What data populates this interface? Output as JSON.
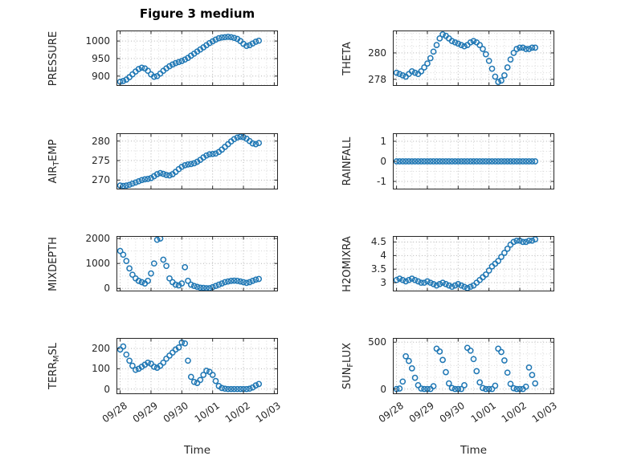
{
  "figure": {
    "title": "Figure 3 medium",
    "xlabel": "Time",
    "marker_color": "#1f77b4",
    "grid_major_color": "#b3b3b3",
    "grid_minor_color": "#d8d8d8",
    "axis_color": "#262626"
  },
  "chart_data": {
    "type": "scatter",
    "marker": "open-circle",
    "grid": "dotted major+minor",
    "x_unit": "days since 09/28",
    "xtick_labels": [
      "09/28",
      "09/29",
      "09/30",
      "10/01",
      "10/02",
      "10/03"
    ],
    "xticks": [
      0,
      1,
      2,
      3,
      4,
      5
    ],
    "xlim": [
      -0.12,
      5.12
    ],
    "x_minor": 0.25,
    "x": [
      0,
      0.1,
      0.2,
      0.3,
      0.4,
      0.5,
      0.6,
      0.7,
      0.8,
      0.9,
      1,
      1.1,
      1.2,
      1.3,
      1.4,
      1.5,
      1.6,
      1.7,
      1.8,
      1.9,
      2,
      2.1,
      2.2,
      2.3,
      2.4,
      2.5,
      2.6,
      2.7,
      2.8,
      2.9,
      3,
      3.1,
      3.2,
      3.3,
      3.4,
      3.5,
      3.6,
      3.7,
      3.8,
      3.9,
      4,
      4.1,
      4.2,
      4.3,
      4.4,
      4.5
    ],
    "subplots": [
      {
        "name": "pressure",
        "ylabel_plain": "PRESSURE",
        "ylabel_parts": [
          {
            "text": "PRESSURE",
            "sub": false
          }
        ],
        "yticks": [
          900,
          950,
          1000
        ],
        "ytick_minor": 25,
        "ylim": [
          872,
          1030
        ],
        "values": [
          884,
          886,
          890,
          897,
          905,
          913,
          920,
          924,
          922,
          915,
          905,
          898,
          900,
          907,
          915,
          922,
          928,
          933,
          937,
          940,
          943,
          947,
          952,
          958,
          964,
          970,
          976,
          982,
          988,
          994,
          999,
          1004,
          1008,
          1010,
          1011,
          1012,
          1011,
          1009,
          1006,
          1000,
          992,
          986,
          988,
          993,
          998,
          1001
        ]
      },
      {
        "name": "theta",
        "ylabel_plain": "THETA",
        "ylabel_parts": [
          {
            "text": "THETA",
            "sub": false
          }
        ],
        "yticks": [
          278,
          280
        ],
        "ytick_minor": 0.5,
        "ylim": [
          277.5,
          281.7
        ],
        "values": [
          278.5,
          278.4,
          278.3,
          278.2,
          278.4,
          278.6,
          278.5,
          278.4,
          278.6,
          278.9,
          279.2,
          279.6,
          280.1,
          280.6,
          281.1,
          281.4,
          281.3,
          281.1,
          280.9,
          280.8,
          280.7,
          280.6,
          280.5,
          280.6,
          280.8,
          280.9,
          280.8,
          280.6,
          280.3,
          279.9,
          279.4,
          278.8,
          278.2,
          277.8,
          277.9,
          278.3,
          278.9,
          279.5,
          280,
          280.3,
          280.4,
          280.4,
          280.3,
          280.3,
          280.4,
          280.4
        ]
      },
      {
        "name": "air-temp",
        "ylabel_plain": "AIR_TEMP",
        "ylabel_parts": [
          {
            "text": "AIR",
            "sub": false
          },
          {
            "text": "T",
            "sub": true
          },
          {
            "text": "EMP",
            "sub": false
          }
        ],
        "yticks": [
          270,
          275,
          280
        ],
        "ytick_minor": 2.5,
        "ylim": [
          267.6,
          282
        ],
        "values": [
          268.6,
          268.5,
          268.6,
          268.8,
          269.1,
          269.4,
          269.7,
          270,
          270.2,
          270.3,
          270.5,
          271,
          271.5,
          271.8,
          271.6,
          271.3,
          271.2,
          271.5,
          272.1,
          272.8,
          273.4,
          273.8,
          274,
          274.1,
          274.3,
          274.7,
          275.2,
          275.8,
          276.3,
          276.6,
          276.7,
          276.8,
          277.2,
          277.8,
          278.5,
          279.2,
          279.9,
          280.5,
          280.9,
          281.1,
          281,
          280.6,
          280,
          279.4,
          279.2,
          279.5
        ]
      },
      {
        "name": "rainfall",
        "ylabel_plain": "RAINFALL",
        "ylabel_parts": [
          {
            "text": "RAINFALL",
            "sub": false
          }
        ],
        "yticks": [
          -1,
          0,
          1
        ],
        "ytick_minor": 0.5,
        "ylim": [
          -1.4,
          1.4
        ],
        "values": [
          0,
          0,
          0,
          0,
          0,
          0,
          0,
          0,
          0,
          0,
          0,
          0,
          0,
          0,
          0,
          0,
          0,
          0,
          0,
          0,
          0,
          0,
          0,
          0,
          0,
          0,
          0,
          0,
          0,
          0,
          0,
          0,
          0,
          0,
          0,
          0,
          0,
          0,
          0,
          0,
          0,
          0,
          0,
          0,
          0,
          0
        ]
      },
      {
        "name": "mixdepth",
        "ylabel_plain": "MIXDEPTH",
        "ylabel_parts": [
          {
            "text": "MIXDEPTH",
            "sub": false
          }
        ],
        "yticks": [
          0,
          1000,
          2000
        ],
        "ytick_minor": 500,
        "ylim": [
          -120,
          2100
        ],
        "values": [
          1500,
          1350,
          1100,
          800,
          550,
          400,
          300,
          250,
          200,
          300,
          600,
          1000,
          1950,
          2000,
          1150,
          900,
          400,
          250,
          150,
          120,
          200,
          850,
          300,
          150,
          100,
          60,
          30,
          20,
          10,
          10,
          50,
          100,
          150,
          200,
          250,
          280,
          300,
          310,
          300,
          280,
          250,
          220,
          250,
          300,
          350,
          380
        ]
      },
      {
        "name": "h2omixra",
        "ylabel_plain": "H2OMIXRA",
        "ylabel_parts": [
          {
            "text": "H2OMIXRA",
            "sub": false
          }
        ],
        "yticks": [
          3,
          3.5,
          4,
          4.5
        ],
        "ytick_minor": 0.25,
        "ylim": [
          2.68,
          4.72
        ],
        "values": [
          3.1,
          3.15,
          3.1,
          3.05,
          3.1,
          3.15,
          3.1,
          3.05,
          3,
          3,
          3.05,
          3,
          2.95,
          2.9,
          2.95,
          3,
          2.95,
          2.9,
          2.85,
          2.9,
          2.95,
          2.9,
          2.85,
          2.8,
          2.85,
          2.9,
          3,
          3.1,
          3.2,
          3.3,
          3.45,
          3.6,
          3.7,
          3.8,
          3.95,
          4.1,
          4.25,
          4.4,
          4.5,
          4.55,
          4.55,
          4.5,
          4.5,
          4.55,
          4.55,
          4.6
        ]
      },
      {
        "name": "terr-msl",
        "ylabel_plain": "TERR_MSL",
        "ylabel_parts": [
          {
            "text": "TERR",
            "sub": false
          },
          {
            "text": "M",
            "sub": true
          },
          {
            "text": "SL",
            "sub": false
          }
        ],
        "yticks": [
          0,
          100,
          200
        ],
        "ytick_minor": 50,
        "ylim": [
          -25,
          252
        ],
        "values": [
          195,
          210,
          170,
          140,
          115,
          95,
          100,
          110,
          120,
          130,
          125,
          110,
          105,
          115,
          130,
          150,
          165,
          180,
          195,
          205,
          230,
          225,
          140,
          60,
          35,
          30,
          45,
          70,
          90,
          85,
          70,
          40,
          15,
          5,
          2,
          0,
          0,
          0,
          0,
          0,
          0,
          0,
          2,
          8,
          18,
          25
        ]
      },
      {
        "name": "sun-flux",
        "ylabel_plain": "SUN_FLUX",
        "ylabel_parts": [
          {
            "text": "SUN",
            "sub": false
          },
          {
            "text": "F",
            "sub": true
          },
          {
            "text": "LUX",
            "sub": false
          }
        ],
        "yticks": [
          0,
          500
        ],
        "ytick_minor": 125,
        "ylim": [
          -55,
          545
        ],
        "values": [
          0,
          5,
          80,
          350,
          300,
          220,
          120,
          40,
          5,
          0,
          0,
          0,
          30,
          430,
          400,
          310,
          180,
          60,
          10,
          0,
          0,
          0,
          40,
          440,
          410,
          320,
          190,
          70,
          10,
          0,
          0,
          0,
          35,
          430,
          395,
          305,
          175,
          55,
          8,
          0,
          0,
          0,
          25,
          230,
          150,
          60
        ]
      }
    ]
  }
}
